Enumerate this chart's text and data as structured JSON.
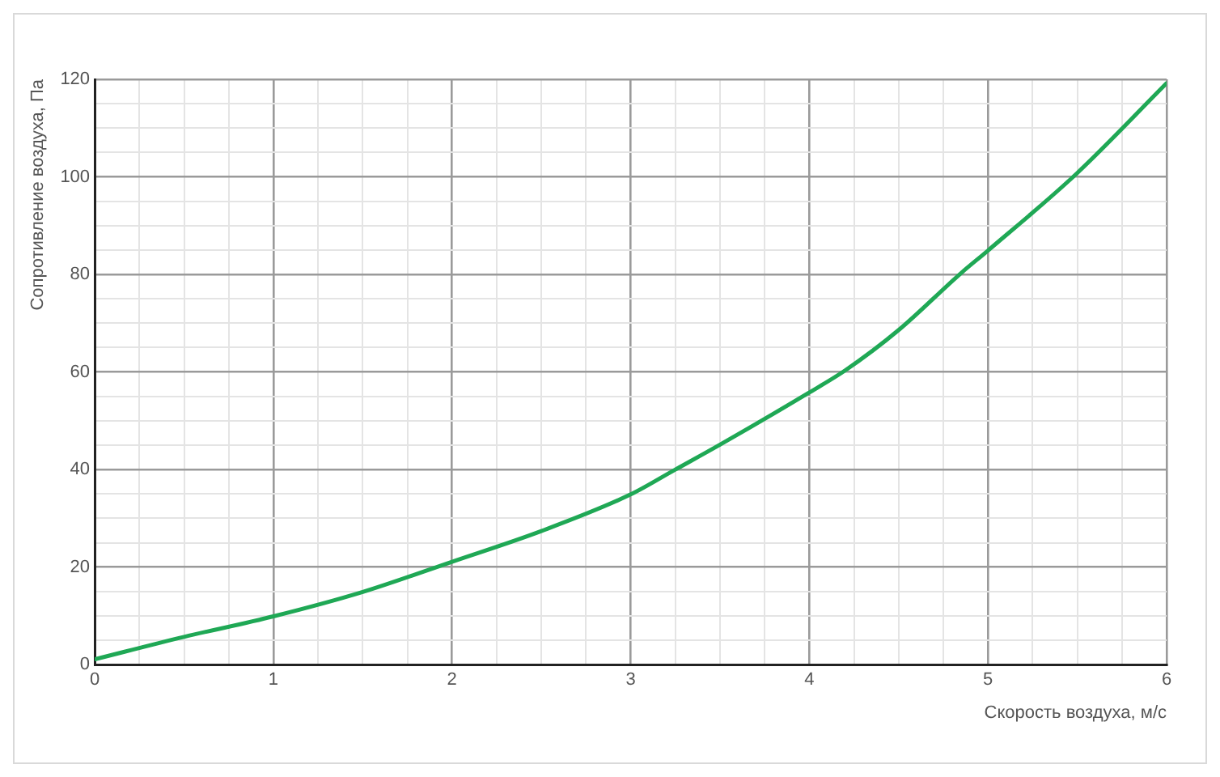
{
  "chart_data": {
    "type": "line",
    "xlabel": "Скорость воздуха, м/с",
    "ylabel": "Сопротивление воздуха, Па",
    "x": [
      0,
      0.5,
      1,
      1.5,
      2,
      2.5,
      3,
      3.25,
      3.5,
      4,
      4.2,
      4.5,
      4.85,
      5,
      5.5,
      6
    ],
    "series": [
      {
        "color": "#1fa855",
        "values": [
          1.1,
          5.7,
          9.9,
          14.9,
          21.1,
          27.4,
          34.9,
          40,
          45.1,
          55.8,
          60.3,
          68.6,
          80.3,
          84.9,
          100.8,
          119.2
        ]
      }
    ],
    "xlim": [
      0,
      6
    ],
    "ylim": [
      0,
      120
    ],
    "xticks": [
      0,
      {
        "value": 0.25,
        "label": null
      },
      {
        "value": 0.5,
        "label": null
      },
      {
        "value": 0.75,
        "label": null
      },
      1,
      {
        "value": 1.25,
        "label": null
      },
      {
        "value": 1.5,
        "label": null
      },
      {
        "value": 1.75,
        "label": null
      },
      2,
      {
        "value": 2.25,
        "label": null
      },
      {
        "value": 2.5,
        "label": null
      },
      {
        "value": 2.75,
        "label": null
      },
      3,
      {
        "value": 3.25,
        "label": null
      },
      {
        "value": 3.5,
        "label": null
      },
      {
        "value": 3.75,
        "label": null
      },
      4,
      {
        "value": 4.25,
        "label": null
      },
      {
        "value": 4.5,
        "label": null
      },
      {
        "value": 4.75,
        "label": null
      },
      5,
      {
        "value": 5.25,
        "label": null
      },
      {
        "value": 5.5,
        "label": null
      },
      {
        "value": 5.75,
        "label": null
      },
      6
    ],
    "yticks": [
      0,
      {
        "value": 5,
        "label": null
      },
      {
        "value": 10,
        "label": null
      },
      {
        "value": 15,
        "label": null
      },
      20,
      {
        "value": 25,
        "label": null
      },
      {
        "value": 30,
        "label": null
      },
      {
        "value": 35,
        "label": null
      },
      40,
      {
        "value": 45,
        "label": null
      },
      {
        "value": 50,
        "label": null
      },
      {
        "value": 55,
        "label": null
      },
      60,
      {
        "value": 65,
        "label": null
      },
      {
        "value": 70,
        "label": null
      },
      {
        "value": 75,
        "label": null
      },
      80,
      {
        "value": 85,
        "label": null
      },
      {
        "value": 90,
        "label": null
      },
      {
        "value": 95,
        "label": null
      },
      100,
      {
        "value": 105,
        "label": null
      },
      {
        "value": 110,
        "label": null
      },
      {
        "value": 115,
        "label": null
      },
      120
    ],
    "grid": true,
    "legend": false,
    "marker": "none",
    "line_style": "solid"
  }
}
